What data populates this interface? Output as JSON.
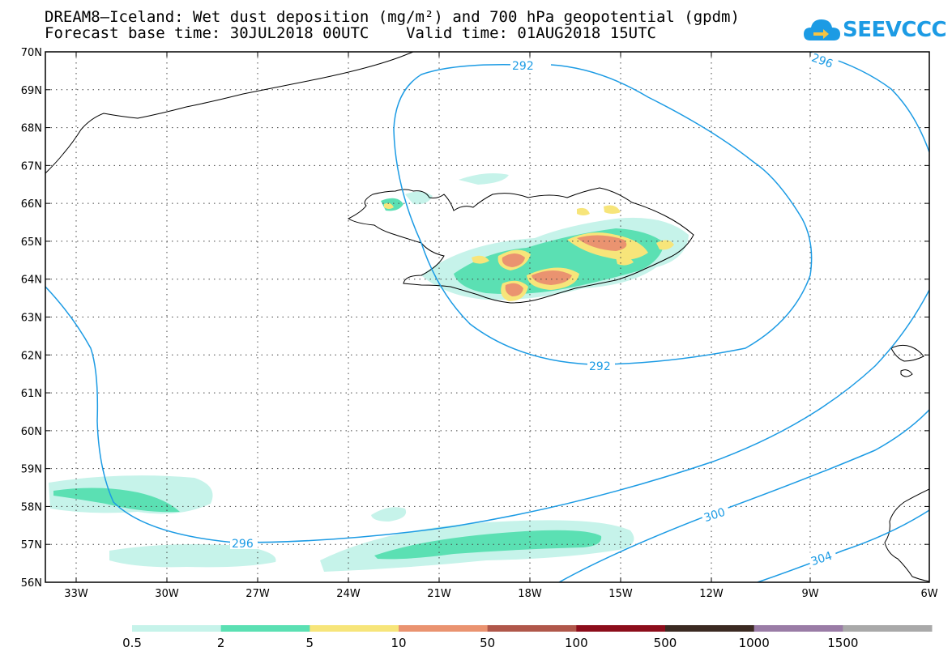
{
  "header": {
    "title_line1": "DREAM8—Iceland: Wet dust deposition (mg/m²) and 700 hPa geopotential (gpdm)",
    "title_line2": "Forecast base time: 30JUL2018 00UTC    Valid time: 01AUG2018 15UTC"
  },
  "logo": {
    "text": "SEEVCCC",
    "color": "#1c9be4",
    "icon": "cloud-icon"
  },
  "map": {
    "lat_labels": [
      "70N",
      "69N",
      "68N",
      "67N",
      "66N",
      "65N",
      "64N",
      "63N",
      "62N",
      "61N",
      "60N",
      "59N",
      "58N",
      "57N",
      "56N"
    ],
    "lon_labels": [
      "33W",
      "30W",
      "27W",
      "24W",
      "21W",
      "18W",
      "15W",
      "12W",
      "9W",
      "6W"
    ],
    "contour_color": "#1c9be4",
    "contour_labels": [
      "292",
      "296",
      "292",
      "296",
      "300",
      "304"
    ]
  },
  "colorbar": {
    "colors": [
      "#c6f3ea",
      "#5be0b3",
      "#f7e57a",
      "#ea9370",
      "#b0574a",
      "#8c0d1b",
      "#3b2a22",
      "#9a7ca6",
      "#a9a9a9"
    ],
    "labels": [
      "0.5",
      "2",
      "5",
      "10",
      "50",
      "100",
      "500",
      "1000",
      "1500"
    ]
  }
}
